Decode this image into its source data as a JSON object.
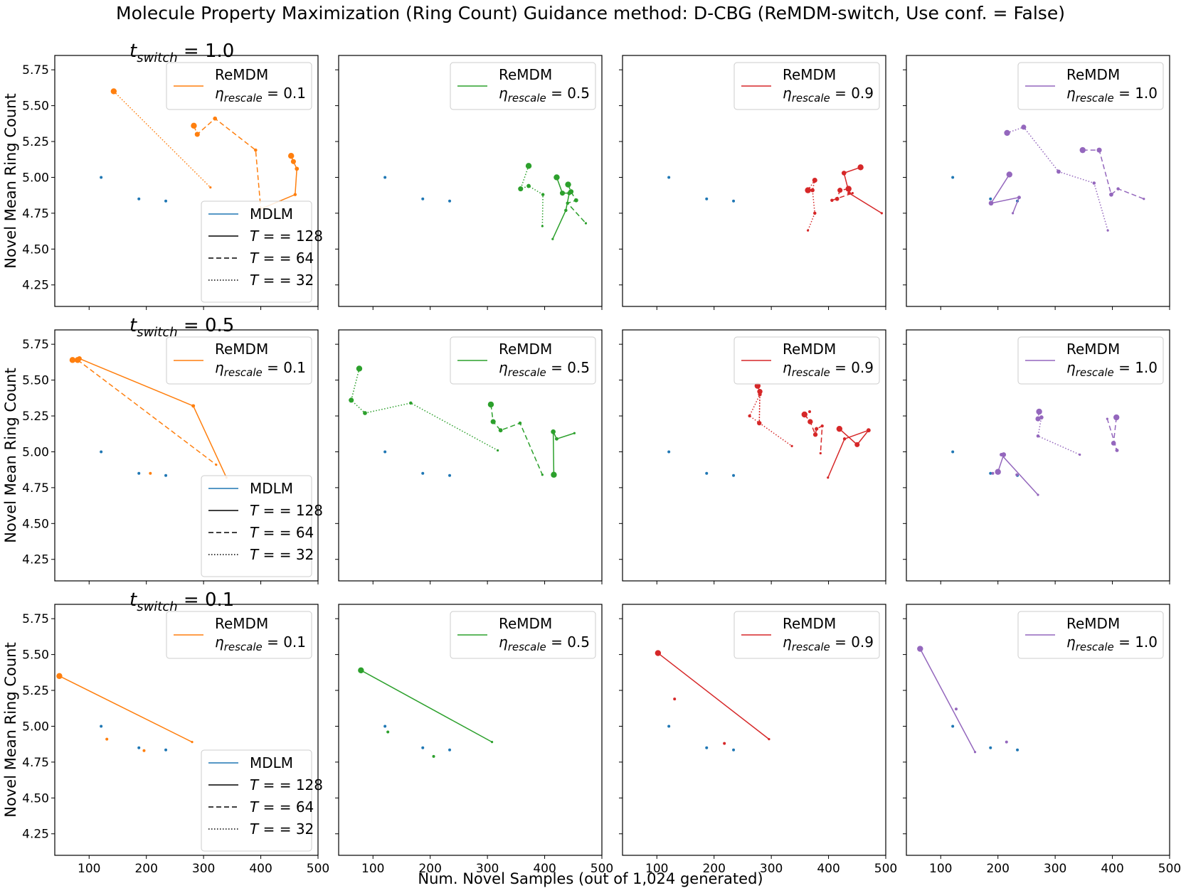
{
  "title": "Molecule Property Maximization (Ring Count) Guidance method: D-CBG (ReMDM-switch, Use conf. = False)",
  "xlabel": "Num. Novel Samples (out of 1,024 generated)",
  "ylabel": "Novel Mean Ring Count",
  "colors": {
    "MDLM": "#1f77b4",
    "0.1": "#ff7f0e",
    "0.5": "#2ca02c",
    "0.9": "#d62728",
    "1.0": "#9467bd",
    "black": "#000000"
  },
  "chart_data": {
    "type": "line",
    "xlim": [
      40,
      500
    ],
    "ylim": [
      4.1,
      5.85
    ],
    "xticks": [
      100,
      200,
      300,
      400,
      500
    ],
    "yticks": [
      4.25,
      4.5,
      4.75,
      5.0,
      5.25,
      5.5,
      5.75
    ],
    "ytick_labels": [
      "4.25",
      "4.50",
      "4.75",
      "5.00",
      "5.25",
      "5.50",
      "5.75"
    ],
    "columns_eta": [
      "0.1",
      "0.5",
      "0.9",
      "1.0"
    ],
    "mdlm_points": [
      [
        121,
        5.0
      ],
      [
        187,
        4.85
      ],
      [
        234,
        4.835
      ]
    ],
    "legend_style": {
      "title": "MDLM",
      "entries": [
        {
          "prefix": "T = ",
          "value": "128"
        },
        {
          "prefix": "T = ",
          "value": "64"
        },
        {
          "prefix": "T = ",
          "value": "32"
        }
      ]
    },
    "legend_remdm_label": "ReMDM",
    "legend_eta_prefix": "η",
    "legend_eta_sub": "rescale",
    "row_title_prefix": "t",
    "row_title_sub": "switch",
    "rows": [
      {
        "t_switch": "1.0",
        "panels": [
          {
            "eta": "0.1",
            "series": [
              {
                "T": 64,
                "points": [
                  [
                    283,
                    5.36
                  ],
                  [
                    289,
                    5.3
                  ],
                  [
                    320,
                    5.41
                  ],
                  [
                    391,
                    5.19
                  ],
                  [
                    400,
                    4.78
                  ]
                ]
              },
              {
                "T": 128,
                "points": [
                  [
                    453,
                    5.15
                  ],
                  [
                    457,
                    5.11
                  ],
                  [
                    463,
                    5.06
                  ],
                  [
                    460,
                    4.88
                  ],
                  [
                    400,
                    4.78
                  ]
                ]
              },
              {
                "T": 32,
                "points": [
                  [
                    143,
                    5.6
                  ],
                  [
                    312,
                    4.93
                  ]
                ]
              }
            ]
          },
          {
            "eta": "0.5",
            "series": [
              {
                "T": 32,
                "points": [
                  [
                    372,
                    5.08
                  ],
                  [
                    358,
                    4.92
                  ],
                  [
                    372,
                    4.94
                  ],
                  [
                    397,
                    4.88
                  ],
                  [
                    396,
                    4.66
                  ]
                ]
              },
              {
                "T": 128,
                "points": [
                  [
                    421,
                    5.0
                  ],
                  [
                    431,
                    4.89
                  ],
                  [
                    443,
                    4.89
                  ],
                  [
                    437,
                    4.77
                  ],
                  [
                    414,
                    4.57
                  ]
                ]
              },
              {
                "T": 64,
                "points": [
                  [
                    441,
                    4.95
                  ],
                  [
                    446,
                    4.9
                  ],
                  [
                    455,
                    4.84
                  ],
                  [
                    440,
                    4.82
                  ],
                  [
                    472,
                    4.68
                  ]
                ]
              }
            ]
          },
          {
            "eta": "0.9",
            "series": [
              {
                "T": 32,
                "points": [
                  [
                    364,
                    4.91
                  ],
                  [
                    376,
                    4.98
                  ],
                  [
                    372,
                    4.91
                  ],
                  [
                    376,
                    4.75
                  ],
                  [
                    364,
                    4.63
                  ]
                ]
              },
              {
                "T": 128,
                "points": [
                  [
                    456,
                    5.07
                  ],
                  [
                    427,
                    5.03
                  ],
                  [
                    436,
                    4.89
                  ],
                  [
                    493,
                    4.75
                  ]
                ]
              },
              {
                "T": 64,
                "points": [
                  [
                    435,
                    4.92
                  ],
                  [
                    420,
                    4.91
                  ],
                  [
                    415,
                    4.85
                  ],
                  [
                    406,
                    4.84
                  ],
                  [
                    442,
                    4.89
                  ]
                ]
              }
            ]
          },
          {
            "eta": "1.0",
            "series": [
              {
                "T": 64,
                "points": [
                  [
                    348,
                    5.19
                  ],
                  [
                    377,
                    5.19
                  ],
                  [
                    398,
                    4.88
                  ],
                  [
                    410,
                    4.92
                  ],
                  [
                    455,
                    4.85
                  ]
                ]
              },
              {
                "T": 32,
                "points": [
                  [
                    216,
                    5.31
                  ],
                  [
                    245,
                    5.35
                  ],
                  [
                    306,
                    5.04
                  ],
                  [
                    368,
                    4.96
                  ],
                  [
                    392,
                    4.63
                  ]
                ]
              },
              {
                "T": 128,
                "points": [
                  [
                    220,
                    5.02
                  ],
                  [
                    188,
                    4.82
                  ],
                  [
                    237,
                    4.86
                  ],
                  [
                    226,
                    4.75
                  ]
                ]
              }
            ]
          }
        ]
      },
      {
        "t_switch": "0.5",
        "panels": [
          {
            "eta": "0.1",
            "series": [
              {
                "T": 128,
                "points": [
                  [
                    71,
                    5.64
                  ],
                  [
                    83,
                    5.65
                  ],
                  [
                    282,
                    5.32
                  ],
                  [
                    340,
                    4.82
                  ]
                ]
              },
              {
                "T": 64,
                "points": [
                  [
                    80,
                    5.64
                  ],
                  [
                    322,
                    4.91
                  ]
                ]
              }
            ],
            "extra_points": [
              [
                207,
                4.85
              ]
            ]
          },
          {
            "eta": "0.5",
            "series": [
              {
                "T": 32,
                "points": [
                  [
                    76,
                    5.58
                  ],
                  [
                    62,
                    5.36
                  ],
                  [
                    86,
                    5.27
                  ],
                  [
                    166,
                    5.34
                  ],
                  [
                    318,
                    5.01
                  ]
                ]
              },
              {
                "T": 64,
                "points": [
                  [
                    306,
                    5.33
                  ],
                  [
                    310,
                    5.21
                  ],
                  [
                    323,
                    5.15
                  ],
                  [
                    357,
                    5.2
                  ],
                  [
                    396,
                    4.84
                  ]
                ]
              },
              {
                "T": 128,
                "points": [
                  [
                    416,
                    4.84
                  ],
                  [
                    415,
                    5.14
                  ],
                  [
                    421,
                    5.09
                  ],
                  [
                    452,
                    5.13
                  ]
                ]
              }
            ]
          },
          {
            "eta": "0.9",
            "series": [
              {
                "T": 32,
                "points": [
                  [
                    276,
                    5.46
                  ],
                  [
                    280,
                    5.42
                  ],
                  [
                    279,
                    5.2
                  ],
                  [
                    280,
                    5.4
                  ],
                  [
                    262,
                    5.25
                  ],
                  [
                    336,
                    5.04
                  ]
                ]
              },
              {
                "T": 64,
                "points": [
                  [
                    358,
                    5.26
                  ],
                  [
                    368,
                    5.21
                  ],
                  [
                    377,
                    5.12
                  ],
                  [
                    379,
                    5.16
                  ],
                  [
                    389,
                    5.18
                  ],
                  [
                    386,
                    4.99
                  ]
                ]
              },
              {
                "T": 128,
                "points": [
                  [
                    419,
                    5.16
                  ],
                  [
                    450,
                    5.05
                  ],
                  [
                    470,
                    5.15
                  ],
                  [
                    428,
                    5.09
                  ],
                  [
                    399,
                    4.82
                  ]
                ]
              }
            ],
            "extra_points": [
              [
                367,
                5.28
              ]
            ]
          },
          {
            "eta": "1.0",
            "series": [
              {
                "T": 32,
                "points": [
                  [
                    272,
                    5.28
                  ],
                  [
                    270,
                    5.23
                  ],
                  [
                    276,
                    5.24
                  ],
                  [
                    270,
                    5.11
                  ],
                  [
                    343,
                    4.98
                  ]
                ]
              },
              {
                "T": 64,
                "points": [
                  [
                    407,
                    5.24
                  ],
                  [
                    402,
                    5.06
                  ],
                  [
                    408,
                    5.01
                  ],
                  [
                    391,
                    5.23
                  ]
                ]
              },
              {
                "T": 128,
                "points": [
                  [
                    200,
                    4.86
                  ],
                  [
                    210,
                    4.98
                  ],
                  [
                    206,
                    4.98
                  ],
                  [
                    270,
                    4.7
                  ]
                ]
              }
            ],
            "extra_points": [
              [
                191,
                4.85
              ],
              [
                233,
                4.84
              ]
            ]
          }
        ]
      },
      {
        "t_switch": "0.1",
        "panels": [
          {
            "eta": "0.1",
            "series": [
              {
                "T": 128,
                "points": [
                  [
                    48,
                    5.35
                  ],
                  [
                    280,
                    4.89
                  ]
                ]
              }
            ],
            "extra_points": [
              [
                131,
                4.91
              ],
              [
                196,
                4.83
              ]
            ]
          },
          {
            "eta": "0.5",
            "series": [
              {
                "T": 128,
                "points": [
                  [
                    79,
                    5.39
                  ],
                  [
                    308,
                    4.89
                  ]
                ]
              }
            ],
            "extra_points": [
              [
                126,
                4.96
              ],
              [
                206,
                4.79
              ]
            ]
          },
          {
            "eta": "0.9",
            "series": [
              {
                "T": 128,
                "points": [
                  [
                    102,
                    5.51
                  ],
                  [
                    296,
                    4.91
                  ]
                ]
              }
            ],
            "extra_points": [
              [
                131,
                5.19
              ],
              [
                218,
                4.88
              ]
            ]
          },
          {
            "eta": "1.0",
            "series": [
              {
                "T": 128,
                "points": [
                  [
                    64,
                    5.54
                  ],
                  [
                    160,
                    4.82
                  ]
                ]
              }
            ],
            "extra_points": [
              [
                127,
                5.12
              ],
              [
                215,
                4.89
              ]
            ]
          }
        ]
      }
    ]
  }
}
